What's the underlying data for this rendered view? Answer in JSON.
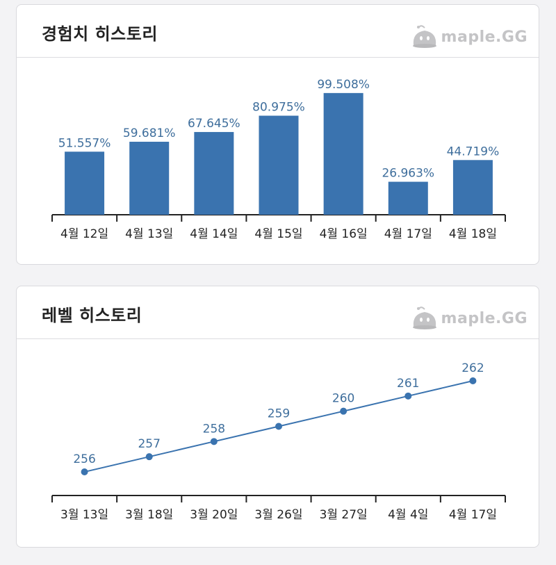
{
  "brand": {
    "text": "maple.GG"
  },
  "colors": {
    "accent": "#3a73af",
    "label": "#3e6e9c",
    "axis": "#222222"
  },
  "exp_card": {
    "title": "경험치 히스토리",
    "chart_data": {
      "type": "bar",
      "categories": [
        "4월 12일",
        "4월 13일",
        "4월 14일",
        "4월 15일",
        "4월 16일",
        "4월 17일",
        "4월 18일"
      ],
      "values": [
        51.557,
        59.681,
        67.645,
        80.975,
        99.508,
        26.963,
        44.719
      ],
      "value_labels": [
        "51.557%",
        "59.681%",
        "67.645%",
        "80.975%",
        "99.508%",
        "26.963%",
        "44.719%"
      ],
      "ylim": [
        0,
        100
      ],
      "grid": false
    }
  },
  "level_card": {
    "title": "레벨 히스토리",
    "chart_data": {
      "type": "line",
      "categories": [
        "3월 13일",
        "3월 18일",
        "3월 20일",
        "3월 26일",
        "3월 27일",
        "4월 4일",
        "4월 17일"
      ],
      "values": [
        256,
        257,
        258,
        259,
        260,
        261,
        262
      ],
      "value_labels": [
        "256",
        "257",
        "258",
        "259",
        "260",
        "261",
        "262"
      ],
      "grid": false
    }
  }
}
